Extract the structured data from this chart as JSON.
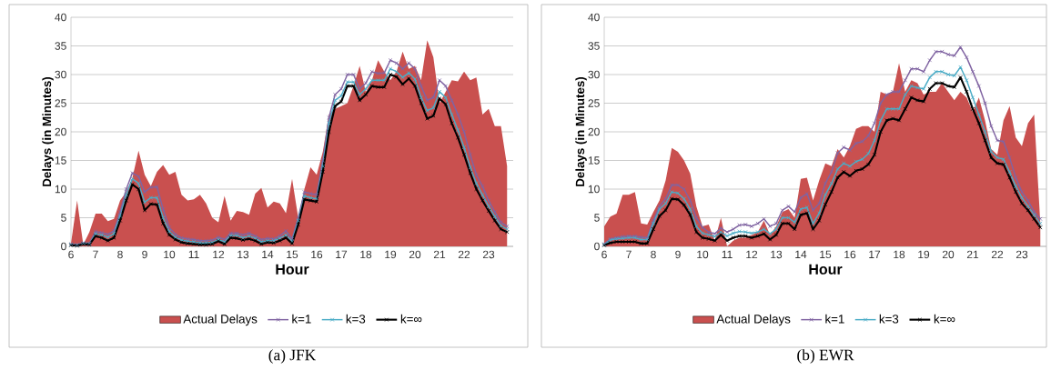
{
  "chart_data": [
    {
      "type": "line",
      "title": "(a) JFK",
      "xlabel": "Hour",
      "ylabel": "Delays (in Minutes)",
      "x": [
        6,
        6.25,
        6.5,
        6.75,
        7,
        7.25,
        7.5,
        7.75,
        8,
        8.25,
        8.5,
        8.75,
        9,
        9.25,
        9.5,
        9.75,
        10,
        10.25,
        10.5,
        10.75,
        11,
        11.25,
        11.5,
        11.75,
        12,
        12.25,
        12.5,
        12.75,
        13,
        13.25,
        13.5,
        13.75,
        14,
        14.25,
        14.5,
        14.75,
        15,
        15.25,
        15.5,
        15.75,
        16,
        16.25,
        16.5,
        16.75,
        17,
        17.25,
        17.5,
        17.75,
        18,
        18.25,
        18.5,
        18.75,
        19,
        19.25,
        19.5,
        19.75,
        20,
        20.25,
        20.5,
        20.75,
        21,
        21.25,
        21.5,
        21.75,
        22,
        22.25,
        22.5,
        22.75,
        23,
        23.25,
        23.5,
        23.75
      ],
      "xlim": [
        6,
        24
      ],
      "xticks": [
        6,
        7,
        8,
        9,
        10,
        11,
        12,
        13,
        14,
        15,
        16,
        17,
        18,
        19,
        20,
        21,
        22,
        23
      ],
      "ylim": [
        0,
        40
      ],
      "yticks": [
        0,
        5,
        10,
        15,
        20,
        25,
        30,
        35,
        40
      ],
      "grid": "y",
      "legend": "bottom",
      "series": [
        {
          "name": "Actual Delays",
          "type": "area",
          "color": "#c9504f",
          "values": [
            0.5,
            8,
            0.3,
            2.5,
            5.7,
            5.7,
            4.4,
            4.8,
            8,
            9.5,
            12,
            16.7,
            12.5,
            10.5,
            13,
            14.2,
            12.5,
            13,
            9,
            8,
            8.2,
            9,
            7.5,
            5,
            4.2,
            8.8,
            4.5,
            6.2,
            6,
            5.5,
            9.2,
            10.2,
            6.8,
            7.8,
            7.5,
            5.8,
            11.8,
            5,
            10,
            13.8,
            12.5,
            16.5,
            23,
            24,
            24.5,
            25,
            28,
            31.5,
            27,
            29,
            32.5,
            30.5,
            29,
            30.5,
            34,
            31,
            31.5,
            29,
            36,
            33,
            25,
            27,
            29,
            28.8,
            30.5,
            29,
            29.5,
            23,
            24,
            21,
            21,
            14
          ]
        },
        {
          "name": "k=1",
          "color": "#8064a2",
          "marker": "cross",
          "values": [
            0.4,
            0.3,
            0.6,
            0.5,
            2.6,
            2.4,
            2.1,
            2.7,
            6,
            10,
            12.8,
            12.2,
            9.5,
            10.3,
            10.4,
            6.5,
            3.3,
            2.1,
            1.5,
            1.3,
            1.2,
            1.0,
            1.0,
            1.1,
            1.6,
            1.2,
            2.3,
            2.3,
            2.0,
            2.3,
            1.8,
            1.2,
            1.4,
            1.3,
            1.8,
            2.7,
            1.3,
            5,
            9.5,
            9.2,
            9,
            15,
            22.5,
            26.5,
            27.5,
            30,
            30,
            27.5,
            28.5,
            30.5,
            30.2,
            30.3,
            32.5,
            32,
            31,
            32,
            31,
            28,
            25.5,
            26,
            29,
            28,
            25.5,
            23,
            20,
            16,
            12.5,
            10.5,
            8,
            6,
            4.2,
            3.5
          ]
        },
        {
          "name": "k=3",
          "color": "#4bacc6",
          "marker": "cross",
          "values": [
            0.3,
            0.2,
            0.5,
            0.4,
            2.2,
            2.0,
            1.6,
            2.2,
            5.3,
            9,
            11.8,
            11,
            7.7,
            8.5,
            8.5,
            5,
            2.6,
            1.6,
            1.1,
            0.9,
            0.8,
            0.6,
            0.6,
            0.7,
            1.2,
            0.8,
            1.9,
            1.9,
            1.5,
            1.8,
            1.4,
            0.8,
            1.0,
            1.0,
            1.4,
            2.0,
            0.9,
            4.5,
            8.8,
            8.5,
            8.3,
            14,
            21.5,
            25.5,
            26.3,
            28.7,
            28.7,
            26.5,
            27.5,
            29,
            29,
            29,
            31,
            30.5,
            29.5,
            30.3,
            29.2,
            26,
            23.7,
            24.2,
            27,
            26,
            23,
            20.3,
            17.3,
            13.8,
            11,
            9,
            7,
            5.2,
            3.6,
            3
          ]
        },
        {
          "name": "k=∞",
          "color": "#000000",
          "marker": "cross",
          "values": [
            0.2,
            0.1,
            0.4,
            0.3,
            1.8,
            1.5,
            1.0,
            1.5,
            4.5,
            8,
            10.8,
            10,
            6.3,
            7.4,
            7.3,
            4,
            2,
            1.2,
            0.7,
            0.5,
            0.4,
            0.3,
            0.3,
            0.4,
            0.9,
            0.4,
            1.5,
            1.4,
            1.1,
            1.3,
            1.0,
            0.4,
            0.7,
            0.6,
            1.0,
            1.5,
            0.5,
            3.8,
            8.2,
            8,
            7.8,
            13,
            20,
            24.5,
            25.3,
            28,
            28,
            25.5,
            26.5,
            28,
            27.8,
            27.8,
            30,
            29.6,
            28.3,
            29.3,
            28,
            25,
            22.3,
            22.8,
            25.8,
            24.8,
            21.5,
            19,
            16,
            12.8,
            10,
            8,
            6.2,
            4.5,
            3,
            2.5
          ]
        }
      ]
    },
    {
      "type": "line",
      "title": "(b) EWR",
      "xlabel": "Hour",
      "ylabel": "Delays (in Minutes)",
      "x": [
        6,
        6.25,
        6.5,
        6.75,
        7,
        7.25,
        7.5,
        7.75,
        8,
        8.25,
        8.5,
        8.75,
        9,
        9.25,
        9.5,
        9.75,
        10,
        10.25,
        10.5,
        10.75,
        11,
        11.25,
        11.5,
        11.75,
        12,
        12.25,
        12.5,
        12.75,
        13,
        13.25,
        13.5,
        13.75,
        14,
        14.25,
        14.5,
        14.75,
        15,
        15.25,
        15.5,
        15.75,
        16,
        16.25,
        16.5,
        16.75,
        17,
        17.25,
        17.5,
        17.75,
        18,
        18.25,
        18.5,
        18.75,
        19,
        19.25,
        19.5,
        19.75,
        20,
        20.25,
        20.5,
        20.75,
        21,
        21.25,
        21.5,
        21.75,
        22,
        22.25,
        22.5,
        22.75,
        23,
        23.25,
        23.5,
        23.75
      ],
      "xlim": [
        6,
        24
      ],
      "xticks": [
        6,
        7,
        8,
        9,
        10,
        11,
        12,
        13,
        14,
        15,
        16,
        17,
        18,
        19,
        20,
        21,
        22,
        23
      ],
      "ylim": [
        0,
        40
      ],
      "yticks": [
        0,
        5,
        10,
        15,
        20,
        25,
        30,
        35,
        40
      ],
      "grid": "y",
      "legend": "bottom",
      "series": [
        {
          "name": "Actual Delays",
          "type": "area",
          "color": "#c9504f",
          "values": [
            3.5,
            5.2,
            5.7,
            9,
            9,
            9.5,
            4,
            3.8,
            6,
            8,
            11.5,
            17.2,
            16.5,
            15,
            12.7,
            7,
            3.5,
            3.8,
            1,
            5,
            0,
            1,
            1.5,
            1.5,
            2,
            2.5,
            4.5,
            2,
            3.5,
            6,
            6.5,
            5,
            11.8,
            12,
            8,
            11.5,
            14.5,
            14,
            17,
            15.5,
            17.5,
            20.5,
            21,
            21,
            20,
            27,
            26.5,
            27,
            32,
            27,
            29,
            28.5,
            26.5,
            27,
            27,
            28.5,
            27,
            25.5,
            27,
            26,
            23.5,
            26,
            22,
            17,
            16,
            22,
            24.5,
            19,
            17.5,
            21.5,
            23,
            4
          ]
        },
        {
          "name": "k=1",
          "color": "#8064a2",
          "marker": "cross",
          "values": [
            0.4,
            1.3,
            1.5,
            1.7,
            1.8,
            1.8,
            1.6,
            1.5,
            4.5,
            7,
            8.3,
            10.7,
            10.7,
            10,
            8,
            5,
            3.3,
            2.5,
            2.2,
            3.2,
            2.5,
            3,
            3.7,
            3.8,
            3.5,
            4,
            4.8,
            3.5,
            4,
            6.3,
            7,
            6,
            8.5,
            9.2,
            6.3,
            7.5,
            11,
            13,
            16.3,
            17.3,
            16.8,
            18,
            18.3,
            19.3,
            21.5,
            25,
            26.5,
            27,
            27,
            29,
            31,
            31,
            30.5,
            32.5,
            34,
            34,
            33.5,
            33.3,
            34.8,
            33,
            30.5,
            28,
            25,
            21,
            18.5,
            18.3,
            15.5,
            12,
            9.5,
            8,
            6,
            4.8
          ]
        },
        {
          "name": "k=3",
          "color": "#4bacc6",
          "marker": "cross",
          "values": [
            0.3,
            1.1,
            1.3,
            1.4,
            1.5,
            1.5,
            1.2,
            1.2,
            4,
            6.5,
            7.5,
            9.5,
            9.3,
            8.3,
            6.5,
            3.5,
            2.3,
            2,
            1.7,
            2.5,
            1.8,
            2.3,
            2.6,
            2.5,
            2.3,
            2.5,
            3.0,
            2.2,
            3,
            5,
            5,
            4.2,
            6.5,
            6.8,
            4,
            5.8,
            9,
            11,
            13.5,
            14.5,
            14,
            14.8,
            15.2,
            16.2,
            18.5,
            22,
            24,
            24,
            24,
            26.5,
            28,
            27.7,
            27.5,
            29.5,
            30.5,
            30.5,
            30,
            29.8,
            31.3,
            29,
            26,
            23,
            20,
            16.5,
            15.5,
            15.2,
            13,
            10.5,
            8.5,
            7,
            5.5,
            4
          ]
        },
        {
          "name": "k=∞",
          "color": "#000000",
          "marker": "cross",
          "values": [
            0.2,
            0.6,
            0.8,
            0.8,
            0.8,
            0.8,
            0.5,
            0.5,
            3,
            5.3,
            6.3,
            8.3,
            8.2,
            7.2,
            5.5,
            2.5,
            1.5,
            1.3,
            1.0,
            2,
            1.0,
            1.5,
            1.8,
            1.8,
            1.5,
            1.8,
            2.2,
            1.2,
            2,
            4,
            4,
            3,
            5.5,
            5.8,
            3,
            4.5,
            7.3,
            9.5,
            12,
            13,
            12.3,
            13.2,
            13.5,
            14.3,
            16,
            20,
            22,
            22.3,
            22,
            24,
            26,
            25.5,
            25.3,
            27.5,
            28.5,
            28.5,
            28,
            27.8,
            29.5,
            27,
            24,
            21.5,
            18.5,
            15.5,
            14.5,
            14.3,
            12,
            9.5,
            7.5,
            6.3,
            4.8,
            3.3
          ]
        }
      ]
    }
  ]
}
